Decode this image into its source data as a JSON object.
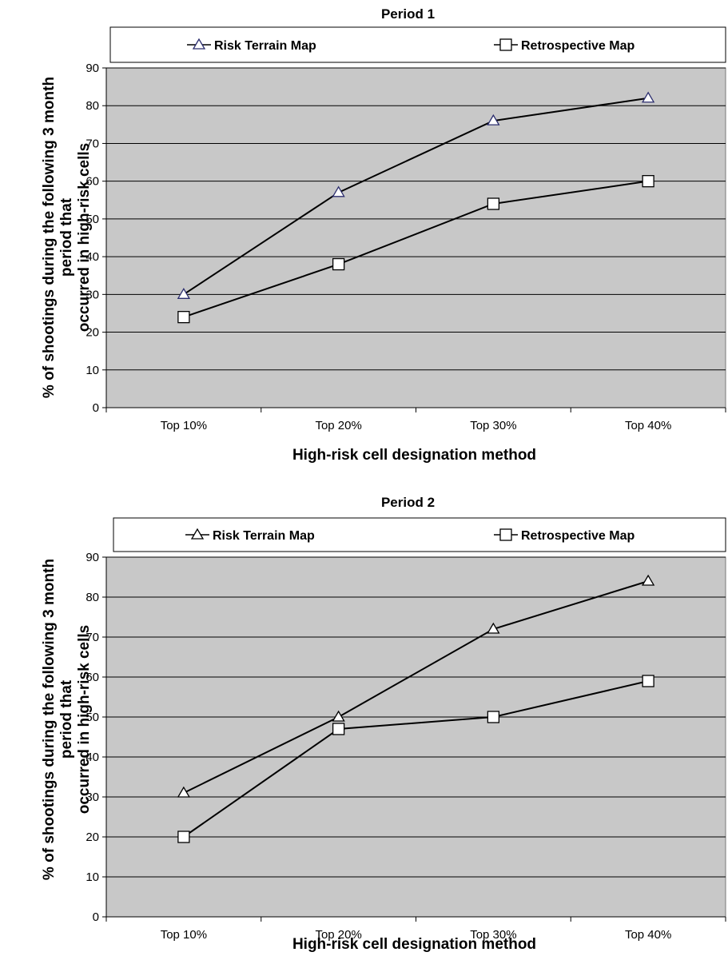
{
  "chart_data": [
    {
      "type": "line",
      "title": "Period 1",
      "xlabel": "High-risk cell designation method",
      "ylabel_lines": [
        "% of shootings during the following 3 month",
        "period that",
        "occurred in high-risk cells"
      ],
      "categories": [
        "Top 10%",
        "Top 20%",
        "Top 30%",
        "Top 40%"
      ],
      "ylim": [
        0,
        90
      ],
      "yticks": [
        0,
        10,
        20,
        30,
        40,
        50,
        60,
        70,
        80,
        90
      ],
      "grid": true,
      "legend_position": "top",
      "plot_background": "#c8c8c8",
      "series": [
        {
          "name": "Risk Terrain Map",
          "marker": "triangle",
          "marker_color": "#2b2d6e",
          "values": [
            30,
            57,
            76,
            82
          ]
        },
        {
          "name": "Retrospective Map",
          "marker": "square",
          "marker_color": "#000000",
          "values": [
            24,
            38,
            54,
            60
          ]
        }
      ]
    },
    {
      "type": "line",
      "title": "Period 2",
      "xlabel": "High-risk cell designation method",
      "ylabel_lines": [
        "% of shootings during the following 3 month",
        "period that",
        "occurred in high-risk cells"
      ],
      "categories": [
        "Top 10%",
        "Top 20%",
        "Top 30%",
        "Top 40%"
      ],
      "ylim": [
        0,
        90
      ],
      "yticks": [
        0,
        10,
        20,
        30,
        40,
        50,
        60,
        70,
        80,
        90
      ],
      "grid": true,
      "legend_position": "top",
      "plot_background": "#c8c8c8",
      "series": [
        {
          "name": "Risk Terrain Map",
          "marker": "triangle",
          "marker_color": "#000000",
          "values": [
            31,
            50,
            72,
            84
          ]
        },
        {
          "name": "Retrospective Map",
          "marker": "square",
          "marker_color": "#000000",
          "values": [
            20,
            47,
            50,
            59
          ]
        }
      ]
    }
  ]
}
